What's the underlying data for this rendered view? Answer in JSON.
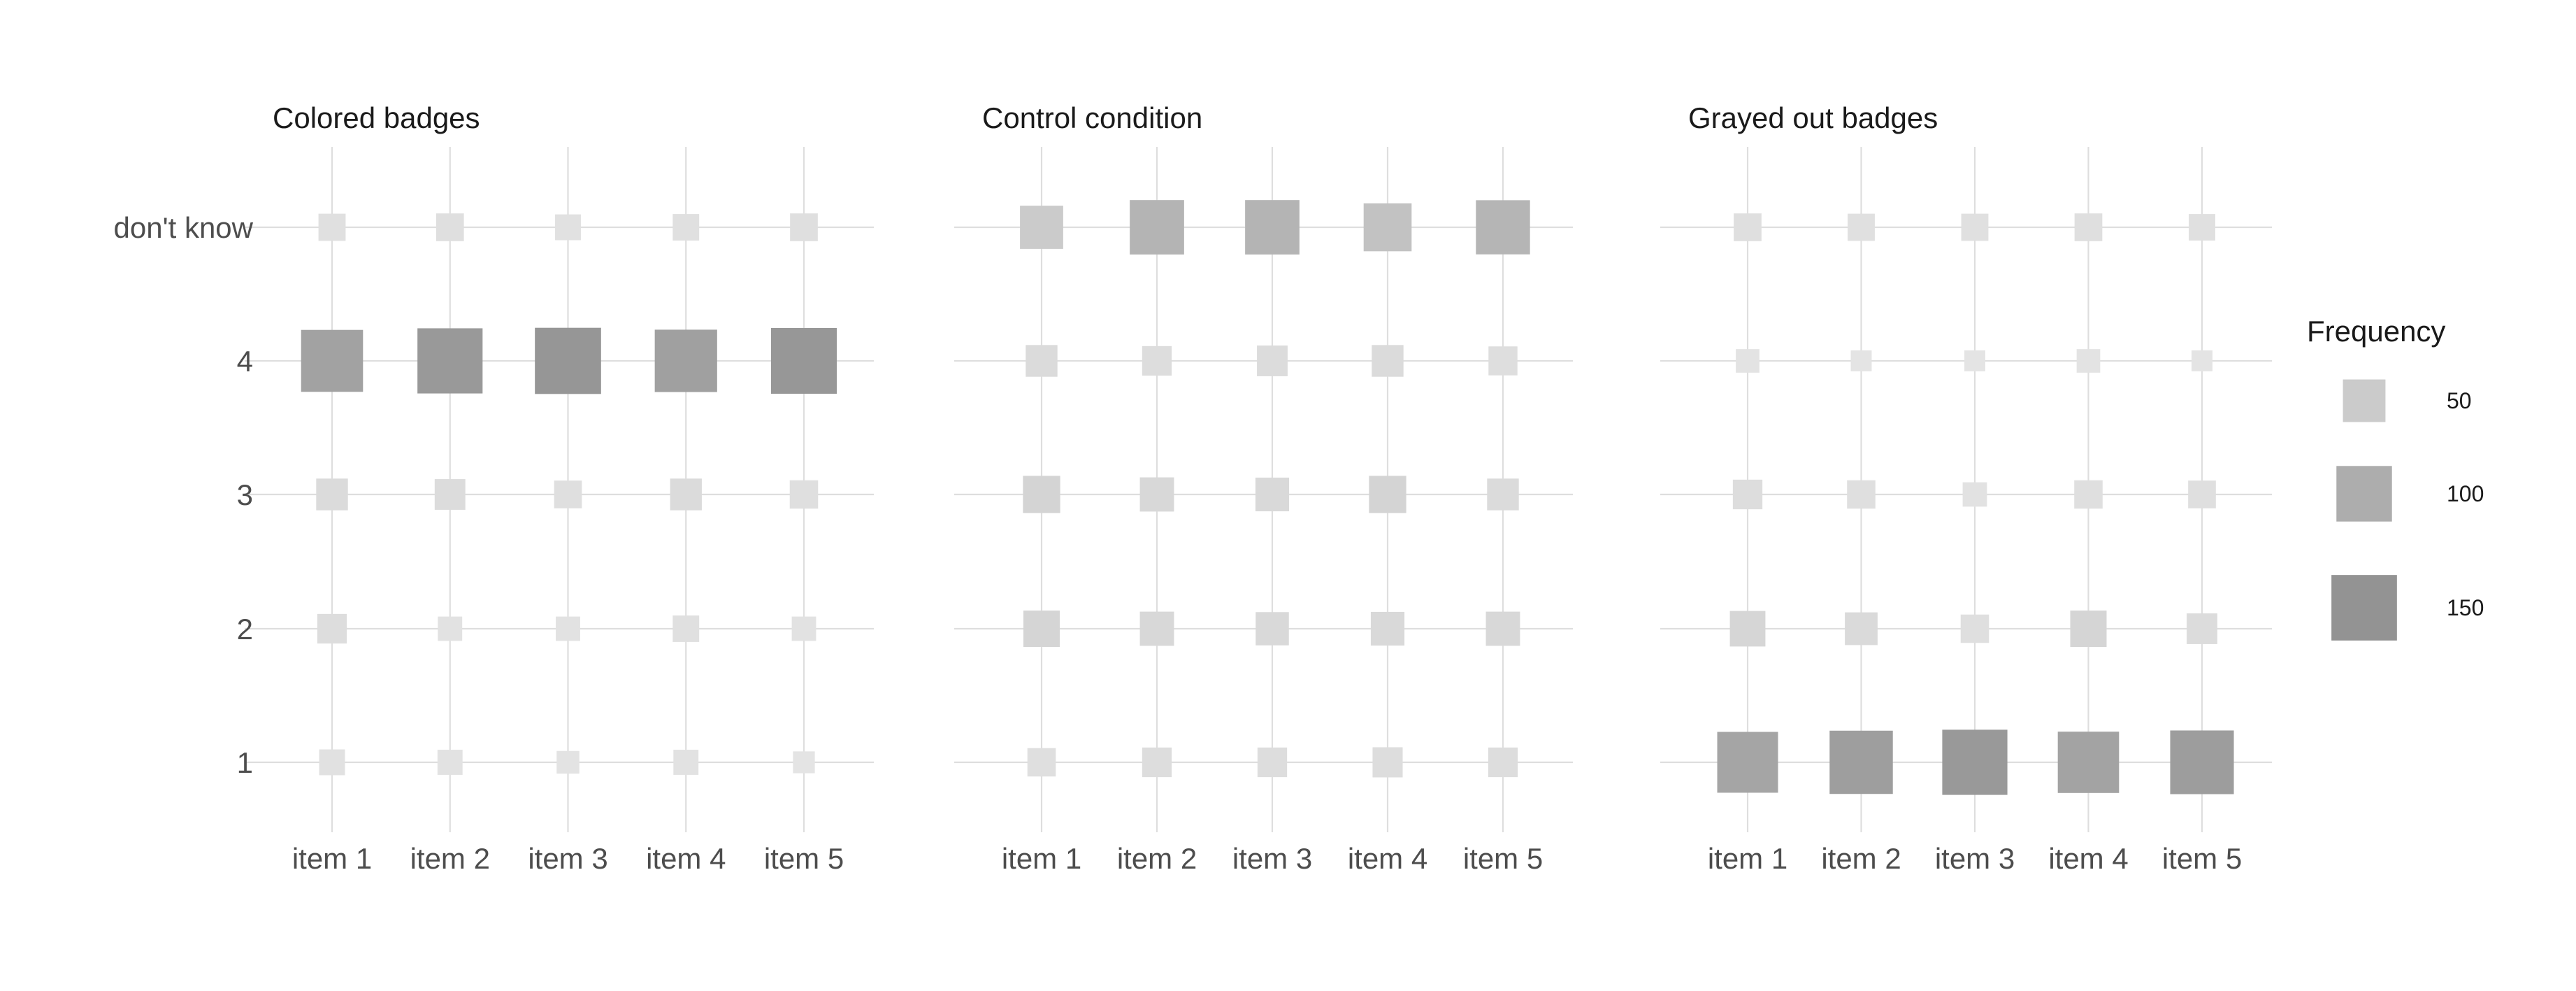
{
  "chart_data": {
    "type": "heatmap",
    "encoding": "square size and gray shade both encode frequency",
    "categories": [
      "item 1",
      "item 2",
      "item 3",
      "item 4",
      "item 5"
    ],
    "y_levels": [
      "1",
      "2",
      "3",
      "4",
      "don't know"
    ],
    "panels": [
      {
        "title": "Colored badges",
        "values": [
          [
            12,
            18,
            22,
            120,
            14
          ],
          [
            11,
            10,
            20,
            135,
            15
          ],
          [
            8,
            10,
            15,
            140,
            12
          ],
          [
            11,
            13,
            22,
            122,
            13
          ],
          [
            7,
            10,
            16,
            138,
            15
          ]
        ]
      },
      {
        "title": "Control condition",
        "values": [
          [
            16,
            32,
            34,
            22,
            50
          ],
          [
            18,
            27,
            27,
            18,
            88
          ],
          [
            18,
            25,
            26,
            20,
            88
          ],
          [
            19,
            26,
            34,
            22,
            65
          ],
          [
            18,
            27,
            22,
            17,
            87
          ]
        ]
      },
      {
        "title": "Grayed out badges",
        "values": [
          [
            115,
            30,
            18,
            9,
            15
          ],
          [
            126,
            24,
            16,
            6,
            14
          ],
          [
            135,
            16,
            10,
            6,
            14
          ],
          [
            117,
            32,
            16,
            9,
            15
          ],
          [
            128,
            20,
            15,
            6,
            13
          ]
        ]
      }
    ],
    "legend": {
      "title": "Frequency",
      "entries": [
        {
          "value": 50,
          "label": "50"
        },
        {
          "value": 100,
          "label": "100"
        },
        {
          "value": 150,
          "label": "150"
        }
      ],
      "placement": "right"
    },
    "grid": true
  },
  "colors": {
    "background": "#ffffff",
    "gridline": "#dedede",
    "fill_min": "#e8e8e8",
    "fill_max": "#939393"
  }
}
